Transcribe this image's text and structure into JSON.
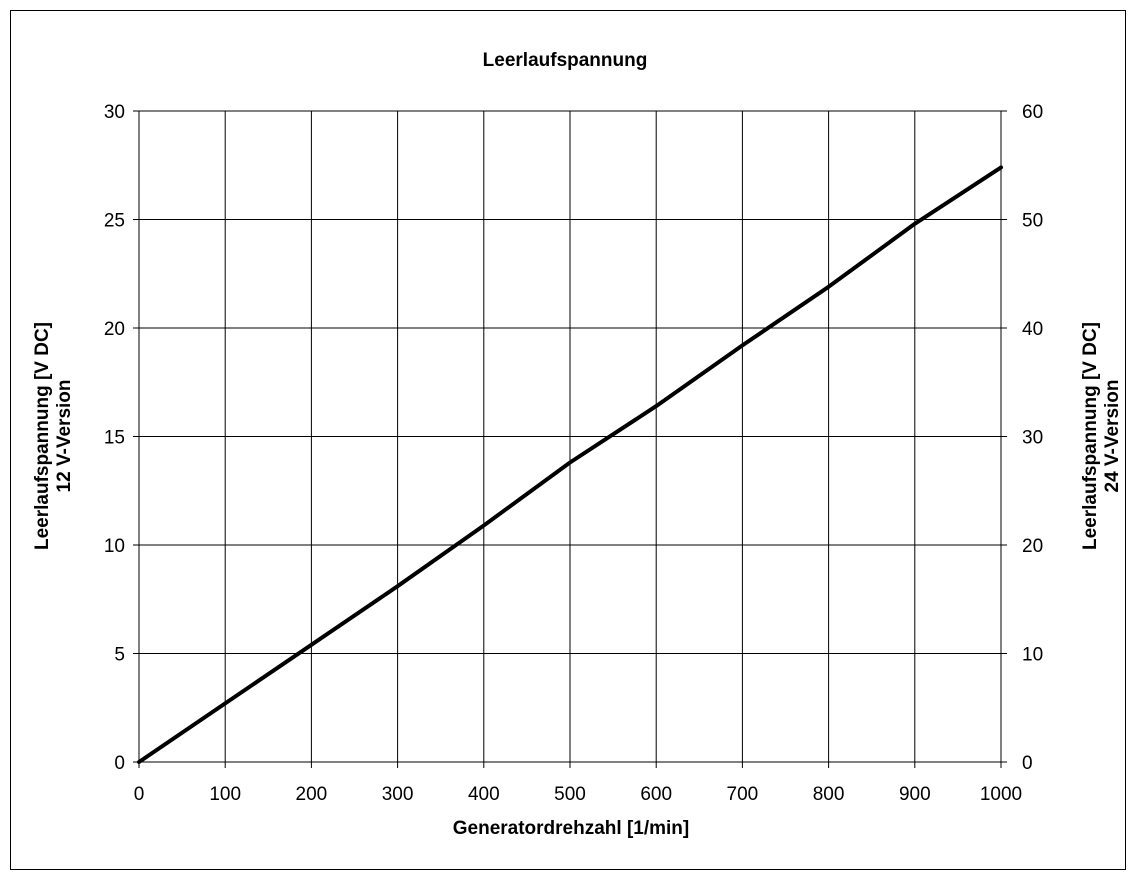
{
  "chart_data": {
    "type": "line",
    "title": "Leerlaufspannung",
    "xlabel": "Generatordrehzahl   [1/min]",
    "ylabel_left": [
      "Leerlaufspannung   [V DC]",
      "12 V-Version"
    ],
    "ylabel_right": [
      "Leerlaufspannung   [V DC]",
      "24 V-Version"
    ],
    "xlim": [
      0,
      1000
    ],
    "ylim_left": [
      0,
      30
    ],
    "ylim_right": [
      0,
      60
    ],
    "x_ticks": [
      "0",
      "100",
      "200",
      "300",
      "400",
      "500",
      "600",
      "700",
      "800",
      "900",
      "1000"
    ],
    "y_left_ticks": [
      "0",
      "5",
      "10",
      "15",
      "20",
      "25",
      "30"
    ],
    "y_right_ticks": [
      "0",
      "10",
      "20",
      "30",
      "40",
      "50",
      "60"
    ],
    "grid": true,
    "line_color": "#000000",
    "series": [
      {
        "x": [
          0,
          100,
          200,
          300,
          400,
          500,
          600,
          700,
          800,
          900,
          1000
        ],
        "y": [
          0,
          2.7,
          5.4,
          8.1,
          10.9,
          13.8,
          16.4,
          19.2,
          21.9,
          24.8,
          27.4
        ]
      }
    ]
  }
}
